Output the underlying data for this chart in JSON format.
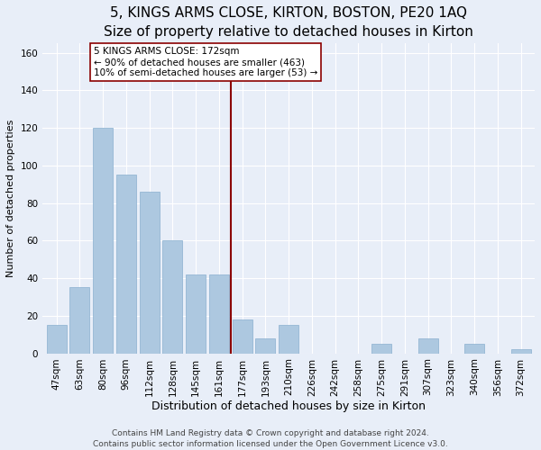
{
  "title": "5, KINGS ARMS CLOSE, KIRTON, BOSTON, PE20 1AQ",
  "subtitle": "Size of property relative to detached houses in Kirton",
  "xlabel": "Distribution of detached houses by size in Kirton",
  "ylabel": "Number of detached properties",
  "categories": [
    "47sqm",
    "63sqm",
    "80sqm",
    "96sqm",
    "112sqm",
    "128sqm",
    "145sqm",
    "161sqm",
    "177sqm",
    "193sqm",
    "210sqm",
    "226sqm",
    "242sqm",
    "258sqm",
    "275sqm",
    "291sqm",
    "307sqm",
    "323sqm",
    "340sqm",
    "356sqm",
    "372sqm"
  ],
  "values": [
    15,
    35,
    120,
    95,
    86,
    60,
    42,
    42,
    18,
    8,
    15,
    0,
    0,
    0,
    5,
    0,
    8,
    0,
    5,
    0,
    2
  ],
  "bar_color": "#adc8e0",
  "bar_edge_color": "#8ab0cf",
  "vline_x_index": 8,
  "vline_color": "#8b0000",
  "annotation_text": "5 KINGS ARMS CLOSE: 172sqm\n← 90% of detached houses are smaller (463)\n10% of semi-detached houses are larger (53) →",
  "annotation_box_color": "#ffffff",
  "annotation_box_edge_color": "#8b0000",
  "ylim": [
    0,
    165
  ],
  "yticks": [
    0,
    20,
    40,
    60,
    80,
    100,
    120,
    140,
    160
  ],
  "footnote": "Contains HM Land Registry data © Crown copyright and database right 2024.\nContains public sector information licensed under the Open Government Licence v3.0.",
  "bg_color": "#e8eef8",
  "grid_color": "#ffffff",
  "title_fontsize": 11,
  "xlabel_fontsize": 9,
  "ylabel_fontsize": 8,
  "tick_fontsize": 7.5,
  "footnote_fontsize": 6.5,
  "annotation_fontsize": 7.5
}
